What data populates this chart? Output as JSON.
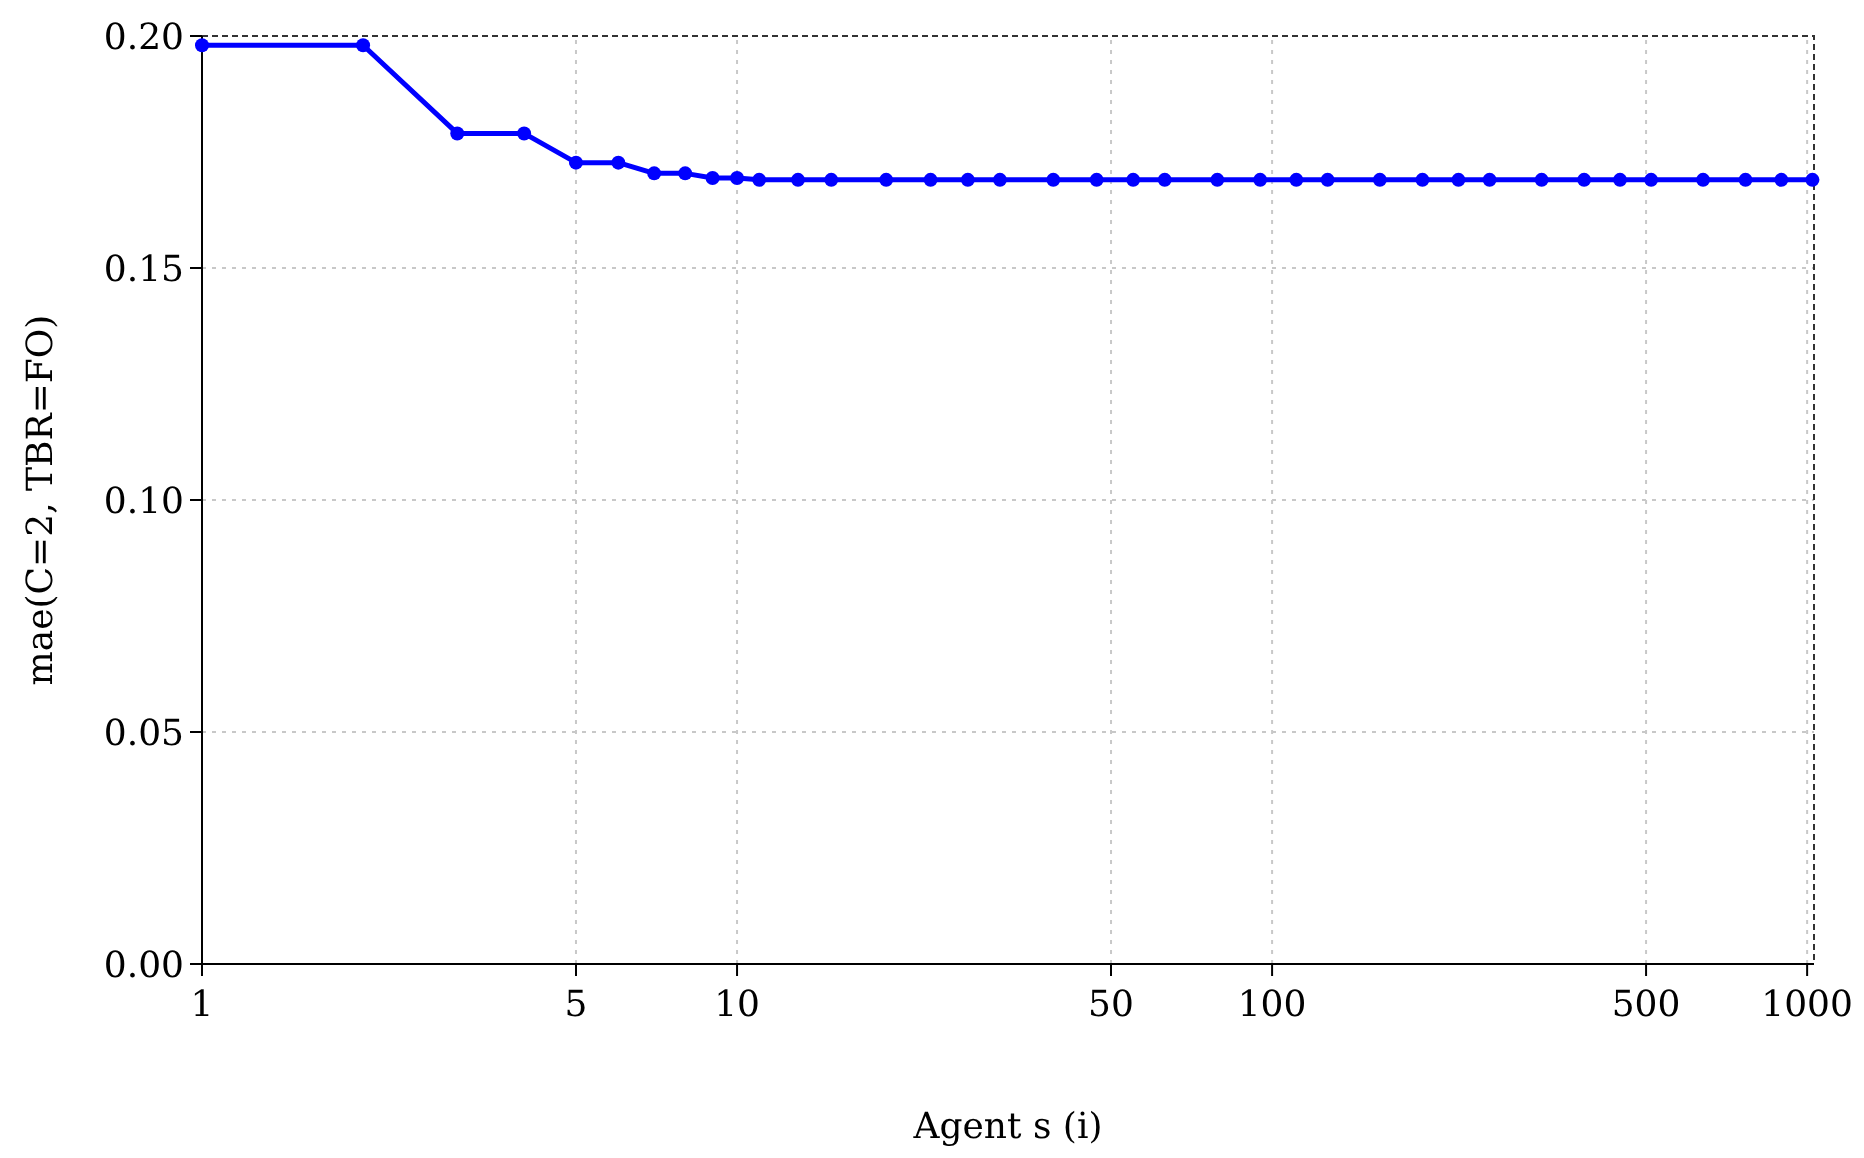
{
  "chart_data": {
    "type": "line",
    "xlabel": "Agent s (i)",
    "ylabel": "mae(C=2, TBR=FO)",
    "log": "x",
    "grid": true,
    "marker": "circle",
    "line_style": "solid",
    "xlim": [
      1,
      1030
    ],
    "xticks": [
      1,
      5,
      10,
      50,
      100,
      500,
      1000
    ],
    "ylim": [
      0,
      0.2
    ],
    "yticks": [
      {
        "value": 0,
        "label": "0.00"
      },
      {
        "value": 0.05,
        "label": "0.05"
      },
      {
        "value": 0.1,
        "label": "0.10"
      },
      {
        "value": 0.15,
        "label": "0.15"
      },
      {
        "value": 0.2,
        "label": "0.20"
      }
    ],
    "series": [
      {
        "color": "#0000ff",
        "x": [
          1,
          2,
          3,
          4,
          5,
          6,
          7,
          8,
          9,
          10,
          11,
          13,
          15,
          19,
          23,
          27,
          31,
          39,
          47,
          55,
          63,
          79,
          95,
          111,
          127,
          159,
          191,
          223,
          255,
          319,
          383,
          447,
          511,
          639,
          767,
          895,
          1023
        ],
        "values": [
          0.198,
          0.198,
          0.179,
          0.179,
          0.1727,
          0.1727,
          0.1704,
          0.1704,
          0.1694,
          0.1694,
          0.169,
          0.169,
          0.169,
          0.169,
          0.169,
          0.169,
          0.169,
          0.169,
          0.169,
          0.169,
          0.169,
          0.169,
          0.169,
          0.169,
          0.169,
          0.169,
          0.169,
          0.169,
          0.169,
          0.169,
          0.169,
          0.169,
          0.169,
          0.169,
          0.169,
          0.169,
          0.169
        ]
      }
    ]
  }
}
